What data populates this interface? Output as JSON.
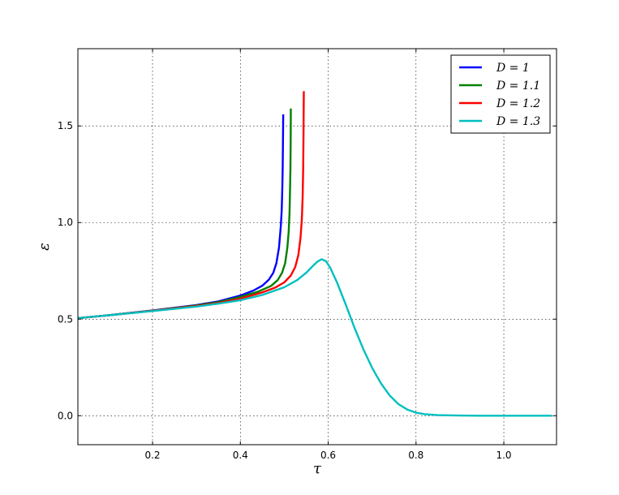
{
  "chart_data": {
    "type": "line",
    "title": "",
    "xlabel": "τ",
    "ylabel": "ε",
    "xlim": [
      0.03,
      1.12
    ],
    "ylim": [
      -0.15,
      1.9
    ],
    "grid": true,
    "legend_position": "top-right",
    "xticks": [
      {
        "value": 0.2,
        "label": "0.2"
      },
      {
        "value": 0.4,
        "label": "0.4"
      },
      {
        "value": 0.6,
        "label": "0.6"
      },
      {
        "value": 0.8,
        "label": "0.8"
      },
      {
        "value": 1.0,
        "label": "1.0"
      }
    ],
    "yticks": [
      {
        "value": 0.0,
        "label": "0.0"
      },
      {
        "value": 0.5,
        "label": "0.5"
      },
      {
        "value": 1.0,
        "label": "1.0"
      },
      {
        "value": 1.5,
        "label": "1.5"
      }
    ],
    "series": [
      {
        "name": "D=1",
        "legend_label": "D = 1",
        "color": "#0000ff",
        "x": [
          0.03,
          0.1,
          0.2,
          0.3,
          0.35,
          0.4,
          0.43,
          0.45,
          0.465,
          0.475,
          0.482,
          0.488,
          0.492,
          0.494,
          0.495,
          0.496,
          0.4965,
          0.497,
          0.4975
        ],
        "y": [
          0.505,
          0.52,
          0.545,
          0.573,
          0.592,
          0.622,
          0.648,
          0.673,
          0.705,
          0.74,
          0.79,
          0.87,
          0.98,
          1.06,
          1.13,
          1.22,
          1.3,
          1.42,
          1.56
        ]
      },
      {
        "name": "D=1.1",
        "legend_label": "D = 1.1",
        "color": "#008000",
        "x": [
          0.03,
          0.1,
          0.2,
          0.3,
          0.35,
          0.4,
          0.44,
          0.47,
          0.485,
          0.495,
          0.502,
          0.507,
          0.51,
          0.512,
          0.513,
          0.514,
          0.5145,
          0.515
        ],
        "y": [
          0.505,
          0.52,
          0.544,
          0.571,
          0.588,
          0.615,
          0.642,
          0.672,
          0.702,
          0.74,
          0.79,
          0.87,
          0.95,
          1.05,
          1.15,
          1.28,
          1.42,
          1.59
        ]
      },
      {
        "name": "D=1.2",
        "legend_label": "D = 1.2",
        "color": "#ff0000",
        "x": [
          0.03,
          0.1,
          0.2,
          0.3,
          0.35,
          0.4,
          0.45,
          0.48,
          0.5,
          0.515,
          0.525,
          0.532,
          0.537,
          0.54,
          0.542,
          0.543,
          0.5438,
          0.5445
        ],
        "y": [
          0.505,
          0.52,
          0.543,
          0.568,
          0.584,
          0.606,
          0.638,
          0.664,
          0.69,
          0.726,
          0.77,
          0.83,
          0.92,
          1.02,
          1.14,
          1.28,
          1.45,
          1.68
        ]
      },
      {
        "name": "D=1.3",
        "legend_label": "D = 1.3",
        "color": "#00bfbf",
        "x": [
          0.03,
          0.1,
          0.2,
          0.3,
          0.35,
          0.4,
          0.45,
          0.5,
          0.53,
          0.55,
          0.565,
          0.575,
          0.585,
          0.595,
          0.605,
          0.62,
          0.64,
          0.66,
          0.68,
          0.7,
          0.72,
          0.74,
          0.76,
          0.78,
          0.8,
          0.82,
          0.85,
          0.9,
          0.95,
          1.0,
          1.05,
          1.11
        ],
        "y": [
          0.505,
          0.52,
          0.542,
          0.565,
          0.58,
          0.598,
          0.625,
          0.665,
          0.703,
          0.74,
          0.775,
          0.797,
          0.81,
          0.8,
          0.765,
          0.69,
          0.575,
          0.455,
          0.345,
          0.248,
          0.168,
          0.105,
          0.06,
          0.032,
          0.016,
          0.008,
          0.003,
          0.001,
          0.0,
          0.0,
          0.0,
          0.0
        ]
      }
    ]
  }
}
